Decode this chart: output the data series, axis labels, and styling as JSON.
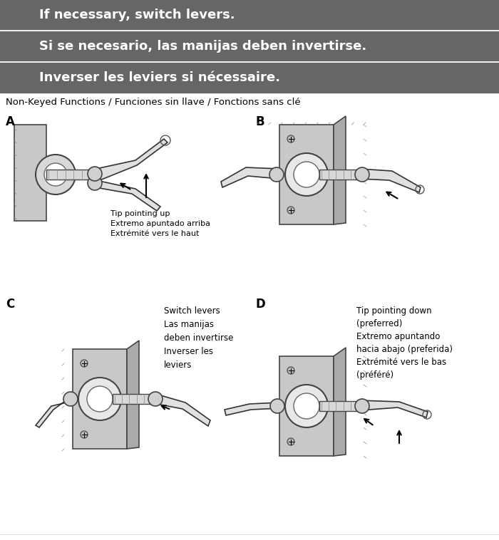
{
  "header_bg": "#666666",
  "header_line1": "If necessary, switch levers.",
  "header_line2": "Si se necesario, las manijas deben invertirse.",
  "header_line3": "Inverser les leviers si nécessaire.",
  "section_label": "Non-Keyed Functions / Funciones sin llave / Fonctions sans clé",
  "label_A": "A",
  "label_B": "B",
  "label_C": "C",
  "label_D": "D",
  "text_A": "Tip pointing up\nExtremo apuntado arriba\nExtrémité vers le haut",
  "text_C": "Switch levers\nLas manijas\ndeben invertirse\nInverser les\nleviers",
  "text_D": "Tip pointing down\n(preferred)\nExtremo apuntando\nhacia abajo (preferida)\nExtrémité vers le bas\n(préféré)",
  "bg_color": "#ffffff",
  "text_color": "#000000",
  "header_text_color": "#ffffff",
  "header_rows": [
    [
      0,
      42,
      13
    ],
    [
      44,
      42,
      13
    ],
    [
      88,
      42,
      13
    ]
  ],
  "header_dividers": [
    43,
    87
  ]
}
